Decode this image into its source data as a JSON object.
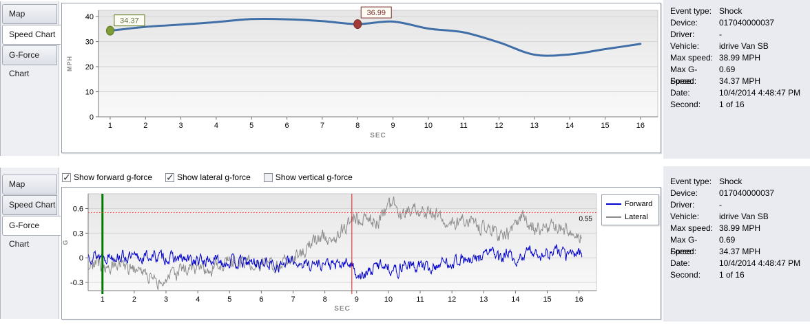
{
  "speed_panel": {
    "tabs": [
      {
        "label": "Map",
        "active": false
      },
      {
        "label": "Speed Chart",
        "active": true
      },
      {
        "label": "G-Force Chart",
        "active": false
      }
    ]
  },
  "gforce_panel": {
    "tabs": [
      {
        "label": "Map",
        "active": false
      },
      {
        "label": "Speed Chart",
        "active": false
      },
      {
        "label": "G-Force Chart",
        "active": true
      }
    ],
    "checkboxes": [
      {
        "label": "Show forward g-force",
        "checked": true
      },
      {
        "label": "Show lateral g-force",
        "checked": true
      },
      {
        "label": "Show vertical g-force",
        "checked": false
      }
    ]
  },
  "event_info": {
    "rows": [
      {
        "label": "Event type:",
        "value": "Shock"
      },
      {
        "label": "Device:",
        "value": "017040000037"
      },
      {
        "label": "Driver:",
        "value": "-"
      },
      {
        "label": "Vehicle:",
        "value": "idrive Van SB"
      },
      {
        "label": "Max speed:",
        "value": "38.99 MPH"
      },
      {
        "label": "Max G-Force:",
        "value": "0.69"
      },
      {
        "label": "Speed:",
        "value": "34.37 MPH"
      },
      {
        "label": "Date:",
        "value": "10/4/2014 4:48:47 PM"
      },
      {
        "label": "Second:",
        "value": "1 of 16"
      }
    ]
  },
  "chart_data": [
    {
      "id": "speed",
      "type": "line",
      "title": "Speed Chart",
      "xlabel": "SEC",
      "ylabel": "MPH",
      "x_ticks": [
        1,
        2,
        3,
        4,
        5,
        6,
        7,
        8,
        9,
        10,
        11,
        12,
        13,
        14,
        15,
        16
      ],
      "y_ticks": [
        0,
        10,
        20,
        30,
        40
      ],
      "xlim": [
        0.67,
        16.49
      ],
      "ylim": [
        0,
        42.5
      ],
      "grid": true,
      "line_color": "#3f6fa6",
      "x": [
        1,
        2,
        3,
        4,
        5,
        6,
        7,
        8,
        9,
        10,
        11,
        12,
        13,
        14,
        15,
        16
      ],
      "values": [
        34.37,
        35.9,
        36.8,
        37.8,
        38.99,
        38.9,
        38.2,
        36.99,
        38.0,
        35.2,
        33.7,
        29.7,
        24.8,
        24.9,
        27.0,
        29.1
      ],
      "markers": [
        {
          "x": 1,
          "y": 34.37,
          "label": "34.37",
          "fill": "#7d9b36",
          "stroke": "#5f7a26",
          "label_color": "#5f7040",
          "box_dx": 6,
          "box_dy": -23
        },
        {
          "x": 8,
          "y": 36.99,
          "label": "36.99",
          "fill": "#a23a3a",
          "stroke": "#7c2a2a",
          "label_color": "#7c2a2a",
          "box_dx": 5,
          "box_dy": -25
        }
      ]
    },
    {
      "id": "gforce",
      "type": "line",
      "title": "G-Force Chart",
      "xlabel": "SEC",
      "ylabel": "G",
      "x_ticks": [
        1,
        2,
        3,
        4,
        5,
        6,
        7,
        8,
        9,
        10,
        11,
        12,
        13,
        14,
        15,
        16
      ],
      "y_ticks": [
        -0.3,
        0,
        0.3,
        0.6
      ],
      "xlim": [
        0.55,
        16.55
      ],
      "ylim": [
        -0.4,
        0.78
      ],
      "grid": true,
      "threshold": {
        "value": 0.55,
        "label": "0.55",
        "color": "#ff1f1f"
      },
      "vlines": [
        {
          "x": 1,
          "color": "#007b00",
          "width": 3
        },
        {
          "x": 8.85,
          "color": "#cf1f1f",
          "width": 1
        }
      ],
      "legend": {
        "position": "right",
        "entries": [
          "Forward",
          "Lateral"
        ]
      },
      "series": [
        {
          "name": "Forward",
          "color": "#0000cd",
          "noise": 0.035,
          "keypoints_x": [
            0.55,
            1,
            1.5,
            2,
            2.5,
            3,
            3.5,
            4,
            4.5,
            5,
            5.5,
            6,
            6.5,
            7,
            7.5,
            8,
            8.4,
            8.8,
            9,
            9.2,
            9.5,
            9.8,
            10,
            10.3,
            10.5,
            10.8,
            11,
            11.3,
            11.6,
            12,
            12.3,
            12.6,
            13,
            13.3,
            13.5,
            13.8,
            14,
            14.2,
            14.5,
            14.8,
            15,
            15.3,
            15.6,
            16.1
          ],
          "keypoints_v": [
            0.04,
            0.02,
            0.03,
            -0.01,
            0.02,
            0,
            -0.02,
            -0.04,
            -0.03,
            -0.05,
            -0.06,
            -0.06,
            -0.09,
            -0.05,
            -0.08,
            -0.07,
            -0.1,
            -0.06,
            -0.18,
            -0.24,
            -0.14,
            -0.06,
            -0.11,
            -0.17,
            -0.06,
            -0.12,
            -0.08,
            -0.14,
            -0.07,
            -0.05,
            -0.01,
            -0.06,
            0.04,
            0.09,
            -0.04,
            0.08,
            -0.14,
            0.03,
            0.09,
            0.04,
            0.05,
            0.09,
            0.03,
            0.08
          ]
        },
        {
          "name": "Lateral",
          "color": "#8c8c8c",
          "noise": 0.042,
          "keypoints_x": [
            0.55,
            1,
            1.5,
            2,
            2.5,
            2.8,
            3.1,
            3.5,
            4,
            4.3,
            4.7,
            5,
            5.3,
            5.7,
            6,
            6.3,
            6.7,
            7,
            7.3,
            7.6,
            8,
            8.2,
            8.5,
            8.9,
            9.1,
            9.4,
            9.7,
            10,
            10.2,
            10.4,
            10.6,
            10.8,
            11,
            11.2,
            11.5,
            11.8,
            12,
            12.3,
            12.6,
            13,
            13.3,
            13.6,
            13.9,
            14.1,
            14.2,
            14.4,
            14.7,
            15,
            15.3,
            15.6,
            16.1
          ],
          "keypoints_v": [
            -0.06,
            -0.1,
            -0.12,
            -0.15,
            -0.22,
            -0.3,
            -0.27,
            -0.16,
            -0.13,
            -0.18,
            -0.1,
            -0.06,
            -0.04,
            -0.07,
            -0.06,
            -0.09,
            -0.04,
            0.02,
            0.08,
            0.16,
            0.27,
            0.17,
            0.3,
            0.5,
            0.44,
            0.47,
            0.44,
            0.6,
            0.65,
            0.5,
            0.55,
            0.58,
            0.6,
            0.54,
            0.55,
            0.46,
            0.41,
            0.43,
            0.44,
            0.35,
            0.31,
            0.28,
            0.32,
            0.47,
            0.55,
            0.38,
            0.36,
            0.36,
            0.38,
            0.32,
            0.26
          ]
        }
      ]
    }
  ]
}
